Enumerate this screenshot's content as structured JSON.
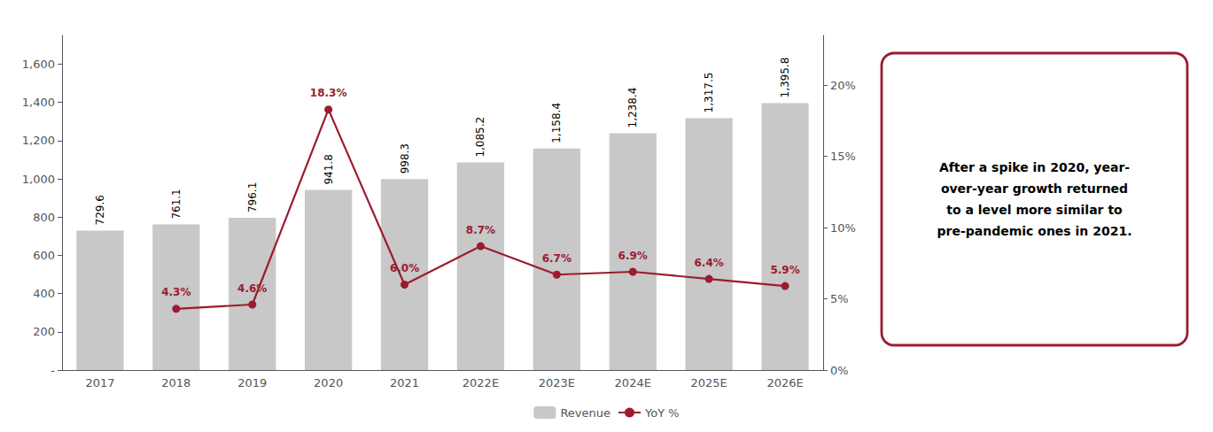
{
  "chart_data": {
    "type": "bar",
    "categories": [
      "2017",
      "2018",
      "2019",
      "2020",
      "2021",
      "2022E",
      "2023E",
      "2024E",
      "2025E",
      "2026E"
    ],
    "series": [
      {
        "name": "Revenue",
        "type": "bar",
        "color": "#C8C8C8",
        "values": [
          729.6,
          761.1,
          796.1,
          941.8,
          998.3,
          1085.2,
          1158.4,
          1238.4,
          1317.5,
          1395.8
        ],
        "value_labels": [
          "729.6",
          "761.1",
          "796.1",
          "941.8",
          "998.3",
          "1,085.2",
          "1,158.4",
          "1,238.4",
          "1,317.5",
          "1,395.8"
        ]
      },
      {
        "name": "YoY %",
        "type": "line",
        "axis": "y2",
        "color": "#9B1B30",
        "marker": "circle",
        "values": [
          null,
          0.043,
          0.046,
          0.183,
          0.06,
          0.087,
          0.067,
          0.069,
          0.064,
          0.059
        ],
        "value_labels": [
          null,
          "4.3%",
          "4.6%",
          "18.3%",
          "6.0%",
          "8.7%",
          "6.7%",
          "6.9%",
          "6.4%",
          "5.9%"
        ]
      }
    ],
    "ylim": [
      0,
      1750
    ],
    "yticks": [
      {
        "value": 0,
        "label": "-"
      },
      200,
      400,
      600,
      800,
      {
        "value": 1000,
        "label": "1,000"
      },
      {
        "value": 1200,
        "label": "1,200"
      },
      {
        "value": 1400,
        "label": "1,400"
      },
      {
        "value": 1600,
        "label": "1,600"
      }
    ],
    "y2lim": [
      0,
      0.235
    ],
    "y2ticks": [
      {
        "value": 0.0,
        "label": "0%"
      },
      {
        "value": 0.05,
        "label": "5%"
      },
      {
        "value": 0.1,
        "label": "10%"
      },
      {
        "value": 0.15,
        "label": "15%"
      },
      {
        "value": 0.2,
        "label": "20%"
      }
    ],
    "data_labels": true,
    "grid": false,
    "legend": "bottom",
    "annotation": {
      "text": [
        "After a spike in 2020, year-",
        "over-year growth returned",
        "to a level more similar to",
        "pre-pandemic ones in 2021."
      ],
      "color": "#9B1B30"
    }
  }
}
